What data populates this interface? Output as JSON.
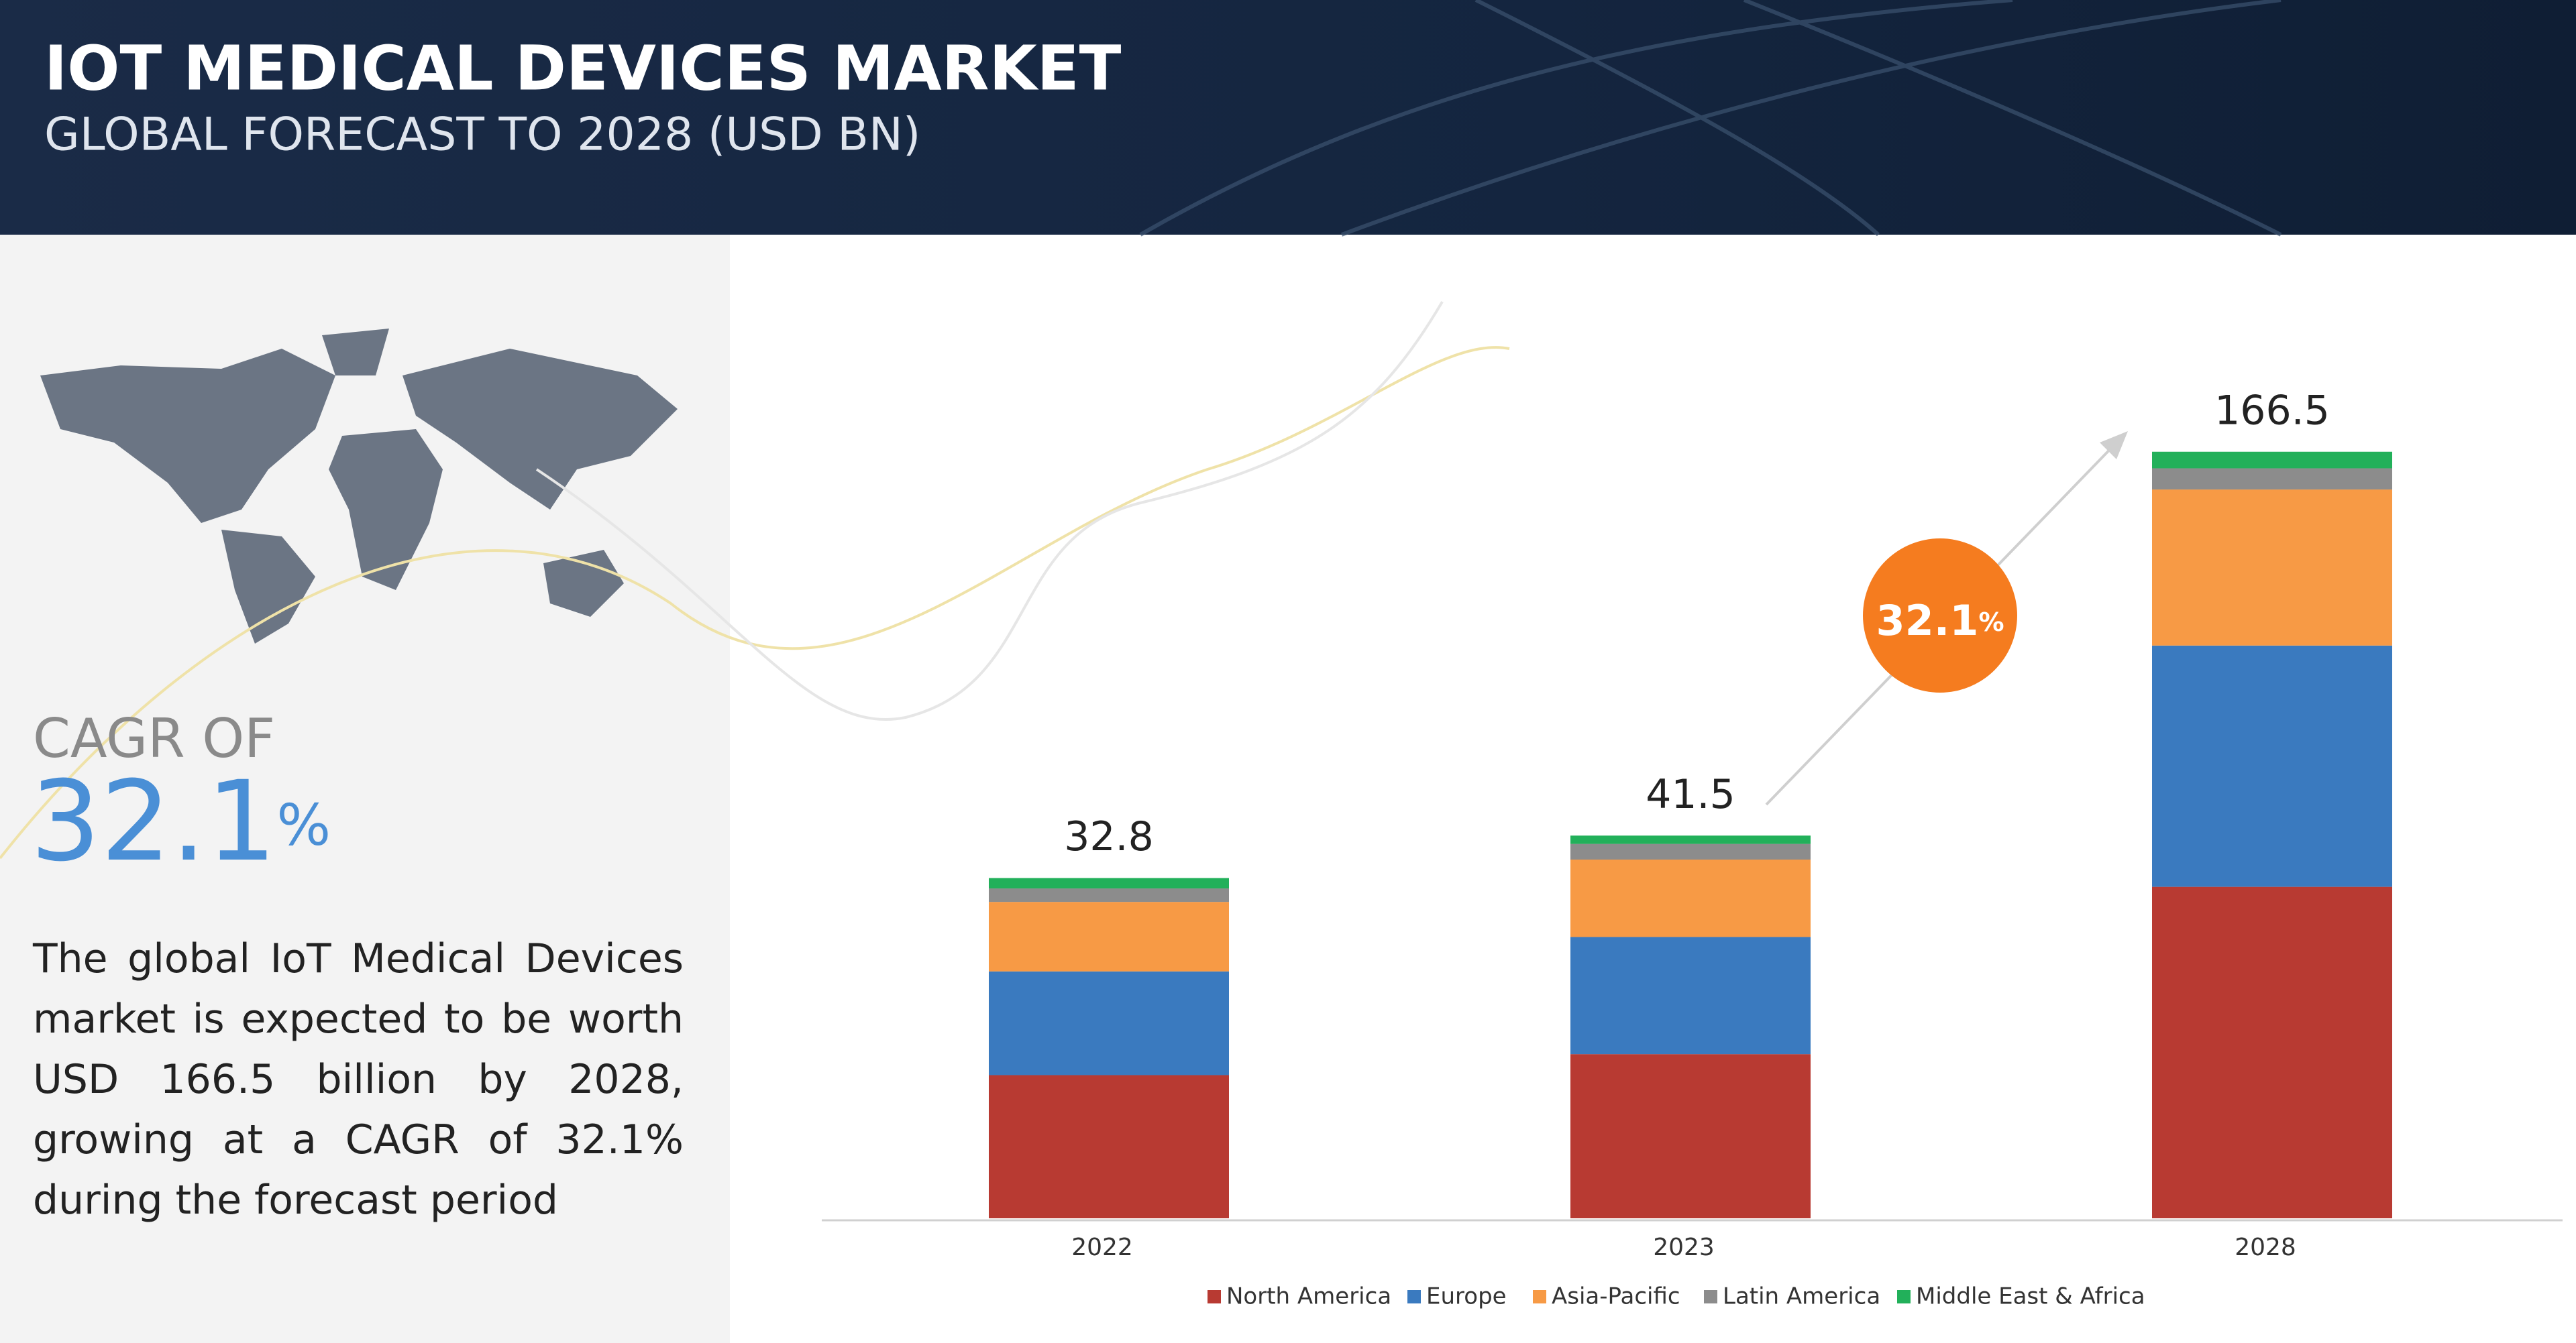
{
  "header": {
    "title": "IOT MEDICAL DEVICES MARKET",
    "subtitle": "GLOBAL FORECAST TO 2028 (USD BN)"
  },
  "summary": {
    "cagr_label": "CAGR OF",
    "cagr_value": "32.1",
    "cagr_unit": "%",
    "text": "The global IoT Medical Devices market is expected to be worth USD 166.5 billion by 2028, growing at a CAGR of 32.1% during the forecast period"
  },
  "chart_data": {
    "type": "stacked_bar",
    "categories": [
      "2022",
      "2023",
      "2028"
    ],
    "series": [
      {
        "name": "North America",
        "color": "#b83a32",
        "values": [
          13.8,
          17.8,
          72.0
        ]
      },
      {
        "name": "Europe",
        "color": "#3a7abf",
        "values": [
          10.0,
          12.7,
          52.4
        ]
      },
      {
        "name": "Asia-Pacific",
        "color": "#f79a45",
        "values": [
          6.7,
          8.4,
          33.9
        ]
      },
      {
        "name": "Latin America",
        "color": "#8c8c8c",
        "values": [
          1.3,
          1.7,
          4.6
        ]
      },
      {
        "name": "Middle East & Africa",
        "color": "#22b05a",
        "values": [
          1.0,
          0.9,
          3.6
        ]
      }
    ],
    "totals": [
      32.8,
      41.5,
      166.5
    ],
    "annotation": {
      "value": "32.1",
      "unit": "%"
    }
  }
}
